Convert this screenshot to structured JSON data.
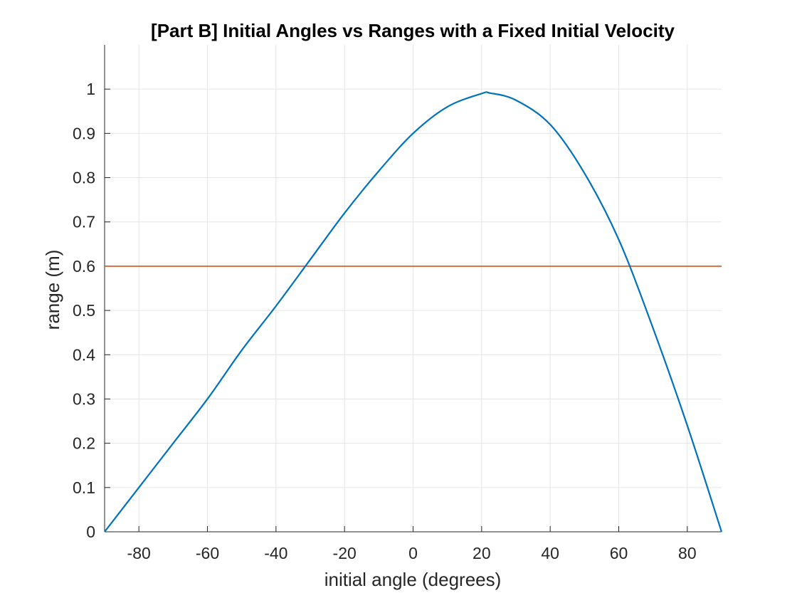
{
  "chart_data": {
    "type": "line",
    "title": "[Part B] Initial Angles vs Ranges with a Fixed Initial Velocity",
    "xlabel": "initial angle (degrees)",
    "ylabel": "range (m)",
    "xlim": [
      -90,
      90
    ],
    "ylim": [
      0,
      1.1
    ],
    "xticks": [
      -80,
      -60,
      -40,
      -20,
      0,
      20,
      40,
      60,
      80
    ],
    "xtick_labels": [
      "-80",
      "-60",
      "-40",
      "-20",
      "0",
      "20",
      "40",
      "60",
      "80"
    ],
    "yticks": [
      0,
      0.1,
      0.2,
      0.3,
      0.4,
      0.5,
      0.6,
      0.7,
      0.8,
      0.9,
      1
    ],
    "ytick_labels": [
      "0",
      "0.1",
      "0.2",
      "0.3",
      "0.4",
      "0.5",
      "0.6",
      "0.7",
      "0.8",
      "0.9",
      "1"
    ],
    "grid": true,
    "series": [
      {
        "color": "#0072BD",
        "x": [
          -90,
          -80,
          -70,
          -60,
          -50,
          -40,
          -30,
          -20,
          -10,
          0,
          10,
          20,
          22.5,
          30,
          40,
          50,
          60,
          70,
          80,
          90
        ],
        "y": [
          0,
          0.1,
          0.2,
          0.3,
          0.41,
          0.51,
          0.615,
          0.72,
          0.815,
          0.9,
          0.96,
          0.99,
          0.991,
          0.975,
          0.92,
          0.81,
          0.66,
          0.46,
          0.24,
          0
        ]
      },
      {
        "color": "#D95319",
        "x": [
          -90,
          90
        ],
        "y": [
          0.6,
          0.6
        ]
      }
    ]
  }
}
